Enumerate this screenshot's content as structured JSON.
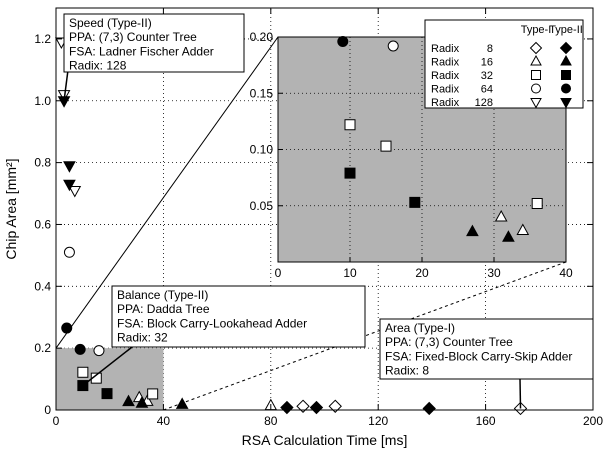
{
  "chart_data": {
    "type": "scatter",
    "xlabel": "RSA Calculation Time [ms]",
    "ylabel": "Chip Area [mm²]",
    "xlim": [
      0,
      200
    ],
    "ylim": [
      0,
      1.3
    ],
    "xticks": [
      "0",
      "40",
      "80",
      "120",
      "160",
      "200"
    ],
    "yticks": [
      "0",
      "0.2",
      "0.4",
      "0.6",
      "0.8",
      "1.0",
      "1.2"
    ],
    "grid": "dotted",
    "legend": {
      "placement": "top-right",
      "header": [
        "Type-I",
        "Type-II"
      ],
      "rows": [
        {
          "label": "Radix",
          "radix": "8",
          "marker": "diamond"
        },
        {
          "label": "Radix",
          "radix": "16",
          "marker": "triangle"
        },
        {
          "label": "Radix",
          "radix": "32",
          "marker": "square"
        },
        {
          "label": "Radix",
          "radix": "64",
          "marker": "circle"
        },
        {
          "label": "Radix",
          "radix": "128",
          "marker": "triangle-down"
        }
      ]
    },
    "series": [
      {
        "type": "Type-I",
        "radix": "8",
        "marker": "diamond",
        "filled": false,
        "points": [
          [
            92,
            0.012
          ],
          [
            104,
            0.012
          ],
          [
            173,
            0.005
          ]
        ]
      },
      {
        "type": "Type-II",
        "radix": "8",
        "marker": "diamond",
        "filled": true,
        "points": [
          [
            86,
            0.008
          ],
          [
            97,
            0.008
          ],
          [
            139,
            0.005
          ]
        ]
      },
      {
        "type": "Type-I",
        "radix": "16",
        "marker": "triangle",
        "filled": false,
        "points": [
          [
            31,
            0.04
          ],
          [
            34,
            0.028
          ],
          [
            80,
            0.014
          ]
        ]
      },
      {
        "type": "Type-I",
        "radix": "32",
        "marker": "square",
        "filled": false,
        "points": [
          [
            10,
            0.122
          ],
          [
            15,
            0.103
          ],
          [
            36,
            0.052
          ]
        ]
      },
      {
        "type": "Type-I",
        "radix": "64",
        "marker": "circle",
        "filled": false,
        "points": [
          [
            5,
            0.51
          ],
          [
            16,
            0.192
          ]
        ]
      },
      {
        "type": "Type-I",
        "radix": "128",
        "marker": "triangle-down",
        "filled": false,
        "points": [
          [
            2,
            1.19
          ],
          [
            3,
            1.02
          ],
          [
            7,
            0.71
          ]
        ]
      },
      {
        "type": "Type-II",
        "radix": "16",
        "marker": "triangle",
        "filled": true,
        "points": [
          [
            27,
            0.027
          ],
          [
            32,
            0.022
          ],
          [
            47,
            0.018
          ]
        ]
      },
      {
        "type": "Type-II",
        "radix": "32",
        "marker": "square",
        "filled": true,
        "points": [
          [
            10,
            0.079
          ],
          [
            19,
            0.053
          ]
        ]
      },
      {
        "type": "Type-II",
        "radix": "64",
        "marker": "circle",
        "filled": true,
        "points": [
          [
            4,
            0.265
          ],
          [
            9,
            0.196
          ]
        ]
      },
      {
        "type": "Type-II",
        "radix": "128",
        "marker": "triangle-down",
        "filled": true,
        "points": [
          [
            3,
            1.0
          ],
          [
            5,
            0.79
          ],
          [
            5,
            0.73
          ]
        ]
      }
    ],
    "inset": {
      "xlim": [
        0,
        40
      ],
      "ylim": [
        0,
        0.2
      ],
      "xticks": [
        "0",
        "10",
        "20",
        "30",
        "40"
      ],
      "yticks": [
        "0.05",
        "0.10",
        "0.15",
        "0.20"
      ]
    },
    "annotations": [
      {
        "id": "speed",
        "lines": [
          "Speed (Type-II)",
          "PPA: (7,3) Counter Tree",
          "FSA: Ladner Fischer Adder",
          "Radix: 128"
        ],
        "target": [
          3,
          1.0
        ]
      },
      {
        "id": "balance",
        "lines": [
          "Balance (Type-II)",
          "PPA: Dadda Tree",
          "FSA: Block Carry-Lookahead Adder",
          "Radix: 32"
        ],
        "target": [
          10,
          0.079
        ]
      },
      {
        "id": "area",
        "lines": [
          "Area (Type-I)",
          "PPA: (7,3) Counter Tree",
          "FSA: Fixed-Block Carry-Skip Adder",
          "Radix: 8"
        ],
        "target": [
          173,
          0.005
        ]
      }
    ]
  }
}
